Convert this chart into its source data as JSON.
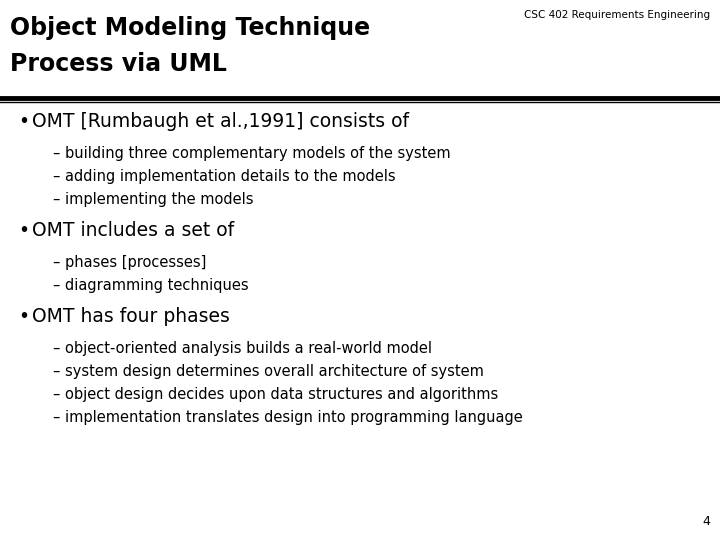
{
  "header_label": "CSC 402 Requirements Engineering",
  "title_line1": "Object Modeling Technique",
  "title_line2": "Process via UML",
  "background_color": "#ffffff",
  "title_color": "#000000",
  "header_color": "#000000",
  "text_color": "#000000",
  "line_color": "#000000",
  "page_number": "4",
  "bullet_items": [
    {
      "bullet": "OMT [Rumbaugh et al.,1991] consists of",
      "subitems": [
        "building three complementary models of the system",
        "adding implementation details to the models",
        "implementing the models"
      ]
    },
    {
      "bullet": "OMT includes a set of",
      "subitems": [
        "phases [processes]",
        "diagramming techniques"
      ]
    },
    {
      "bullet": "OMT has four phases",
      "subitems": [
        "object-oriented analysis builds a real-world model",
        "system design determines overall architecture of system",
        "object design decides upon data structures and algorithms",
        "implementation translates design into programming language"
      ]
    }
  ],
  "title_fontsize": 17,
  "header_fontsize": 7.5,
  "bullet_fontsize": 13.5,
  "sub_fontsize": 10.5,
  "page_fontsize": 9,
  "fig_width": 7.2,
  "fig_height": 5.4,
  "dpi": 100
}
